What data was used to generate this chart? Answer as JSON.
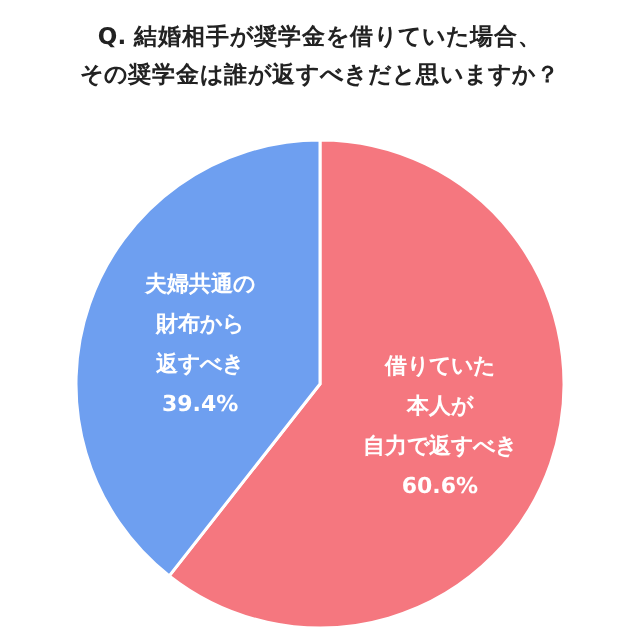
{
  "chart_data": {
    "type": "pie",
    "title": "Q. 結婚相手が奨学金を借りていた場合、その奨学金は誰が返すべきだと思いますか？",
    "categories": [
      "借りていた本人が自力で返すべき",
      "夫婦共通の財布から返すべき"
    ],
    "values": [
      60.6,
      39.4
    ],
    "colors": [
      "#f5777f",
      "#6e9ff0"
    ],
    "value_labels": [
      "60.6%",
      "39.4%"
    ]
  }
}
